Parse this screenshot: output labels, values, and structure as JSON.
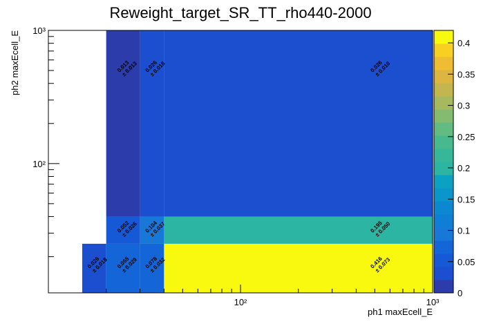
{
  "chart_data": {
    "type": "heatmap2d",
    "title": "Reweight_target_SR_TT_rho440-2000",
    "xlabel": "ph1 maxEcell_E",
    "ylabel": "ph2 maxEcell_E",
    "log_x": true,
    "log_y": true,
    "xbins": [
      15,
      20,
      30,
      40,
      1000
    ],
    "ybins": [
      10,
      25,
      40,
      1000
    ],
    "values": [
      [
        0.026,
        0.065,
        0.078,
        0.416
      ],
      [
        null,
        0.052,
        0.104,
        0.195
      ],
      [
        null,
        0.013,
        0.026,
        0.026
      ]
    ],
    "errors": [
      [
        0.018,
        0.029,
        0.032,
        0.073
      ],
      [
        null,
        0.026,
        0.037,
        0.05
      ],
      [
        null,
        0.013,
        0.018,
        0.018
      ]
    ],
    "error_labels": [
      [
        "± 0.018",
        "± 0.029",
        "± 0.032",
        "± 0.073"
      ],
      [
        null,
        "± 0.026",
        "± 0.037",
        "± 0.050"
      ],
      [
        null,
        "± 0.013",
        "± 0.018",
        "± 0.018"
      ]
    ],
    "xlim": [
      10,
      1000
    ],
    "ylim": [
      10.7,
      1000
    ],
    "xticks": [
      {
        "value": 100,
        "label": "10²"
      },
      {
        "value": 1000,
        "label": "10³"
      }
    ],
    "yticks": [
      {
        "value": 100,
        "label": "10²"
      },
      {
        "value": 1000,
        "label": "10³"
      }
    ],
    "xminor": [
      20,
      30,
      40,
      50,
      60,
      70,
      80,
      90,
      200,
      300,
      400,
      500,
      600,
      700,
      800,
      900
    ],
    "yminor": [
      20,
      30,
      40,
      50,
      60,
      70,
      80,
      90,
      200,
      300,
      400,
      500,
      600,
      700,
      800,
      900
    ],
    "zlim": [
      0,
      0.42
    ],
    "zticks": [
      0,
      0.05,
      0.1,
      0.15,
      0.2,
      0.25,
      0.3,
      0.35,
      0.4
    ],
    "palette": [
      "#2c3cab",
      "#1b4fcf",
      "#1659d6",
      "#1465d8",
      "#1878d8",
      "#0f7fd6",
      "#0b88d1",
      "#0a95cb",
      "#0ba1c2",
      "#2db5a3",
      "#37b79a",
      "#48b98f",
      "#62bb80",
      "#85bb70",
      "#a6b95f",
      "#c4b64f",
      "#dcb640",
      "#eebd34",
      "#f8d022",
      "#f8f90f"
    ]
  }
}
